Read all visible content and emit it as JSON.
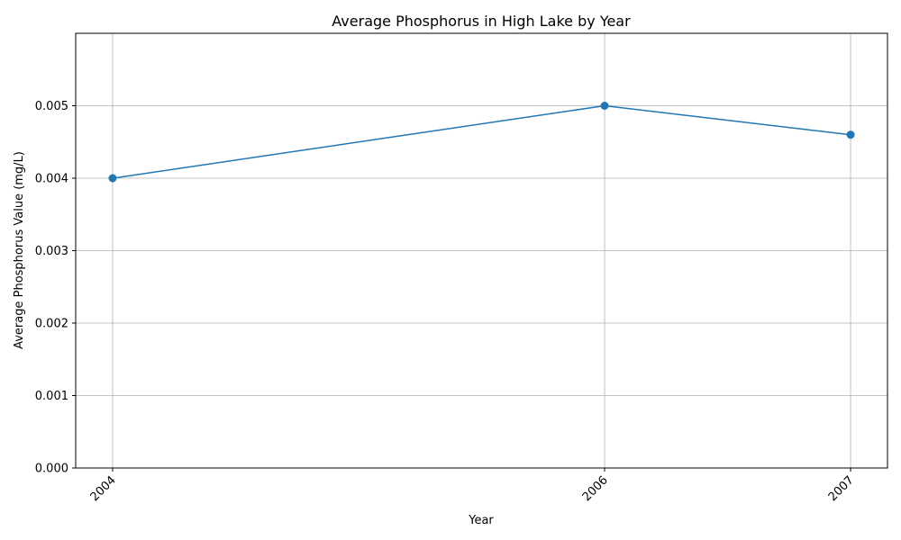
{
  "chart_data": {
    "type": "line",
    "title": "Average Phosphorus in High Lake by Year",
    "xlabel": "Year",
    "ylabel": "Average Phosphorus Value (mg/L)",
    "x": [
      2004,
      2006,
      2007
    ],
    "x_tick_labels": [
      "2004",
      "2006",
      "2007"
    ],
    "series": [
      {
        "values": [
          0.004,
          0.005,
          0.0046
        ],
        "color": "#1f77b4",
        "marker": "circle"
      }
    ],
    "xlim": [
      2003.85,
      2007.15
    ],
    "ylim": [
      0,
      0.006
    ],
    "y_ticks": [
      0.0,
      0.001,
      0.002,
      0.003,
      0.004,
      0.005
    ],
    "y_tick_labels": [
      "0.000",
      "0.001",
      "0.002",
      "0.003",
      "0.004",
      "0.005"
    ],
    "grid": true,
    "legend": "none"
  }
}
